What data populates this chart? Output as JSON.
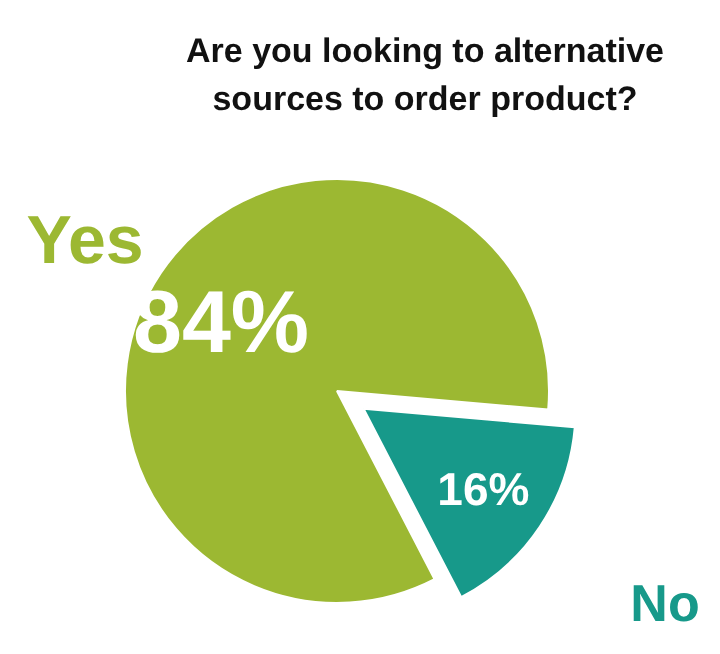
{
  "chart_data": {
    "type": "pie",
    "title": "Are you looking to alternative sources to order product?",
    "categories": [
      "Yes",
      "No"
    ],
    "values": [
      84,
      16
    ],
    "value_labels": [
      "84%",
      "16%"
    ],
    "colors": [
      "#9cb832",
      "#17998a"
    ]
  }
}
